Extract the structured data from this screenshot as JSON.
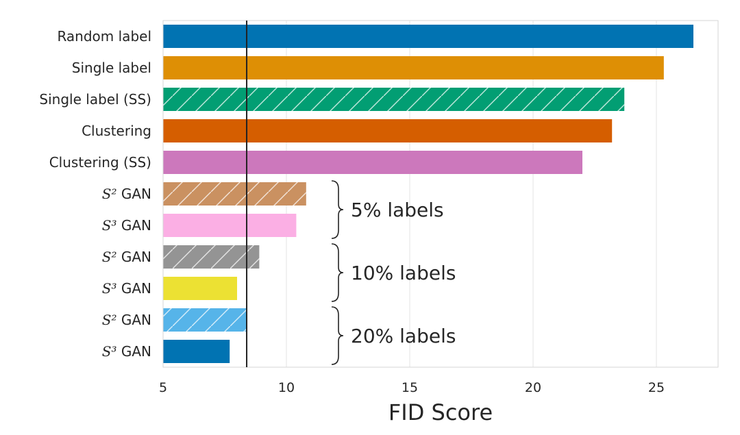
{
  "chart_data": {
    "type": "bar",
    "orientation": "horizontal",
    "title": "",
    "xlabel": "FID Score",
    "ylabel": "",
    "xlim": [
      5,
      27.5
    ],
    "xticks": [
      5,
      10,
      15,
      20,
      25
    ],
    "grid": "vertical",
    "reference_line": 8.39,
    "categories": [
      "Random label",
      "Single label",
      "Single label (SS)",
      "Clustering",
      "Clustering (SS)",
      "S² GAN",
      "S³ GAN",
      "S² GAN",
      "S³ GAN",
      "S² GAN",
      "S³ GAN"
    ],
    "values": [
      26.5,
      25.3,
      23.7,
      23.2,
      22.0,
      10.8,
      10.4,
      8.9,
      8.0,
      8.4,
      7.7
    ],
    "colors": [
      "#0173b2",
      "#de8f05",
      "#029e73",
      "#d55e00",
      "#cc78bc",
      "#ca9161",
      "#fbafe4",
      "#949494",
      "#ece133",
      "#56b4e9",
      "#0173b2"
    ],
    "hatched": [
      false,
      false,
      true,
      false,
      false,
      true,
      false,
      true,
      false,
      true,
      false
    ],
    "groups": [
      {
        "label": "5% labels",
        "rows": [
          5,
          6
        ]
      },
      {
        "label": "10% labels",
        "rows": [
          7,
          8
        ]
      },
      {
        "label": "20% labels",
        "rows": [
          9,
          10
        ]
      }
    ]
  }
}
